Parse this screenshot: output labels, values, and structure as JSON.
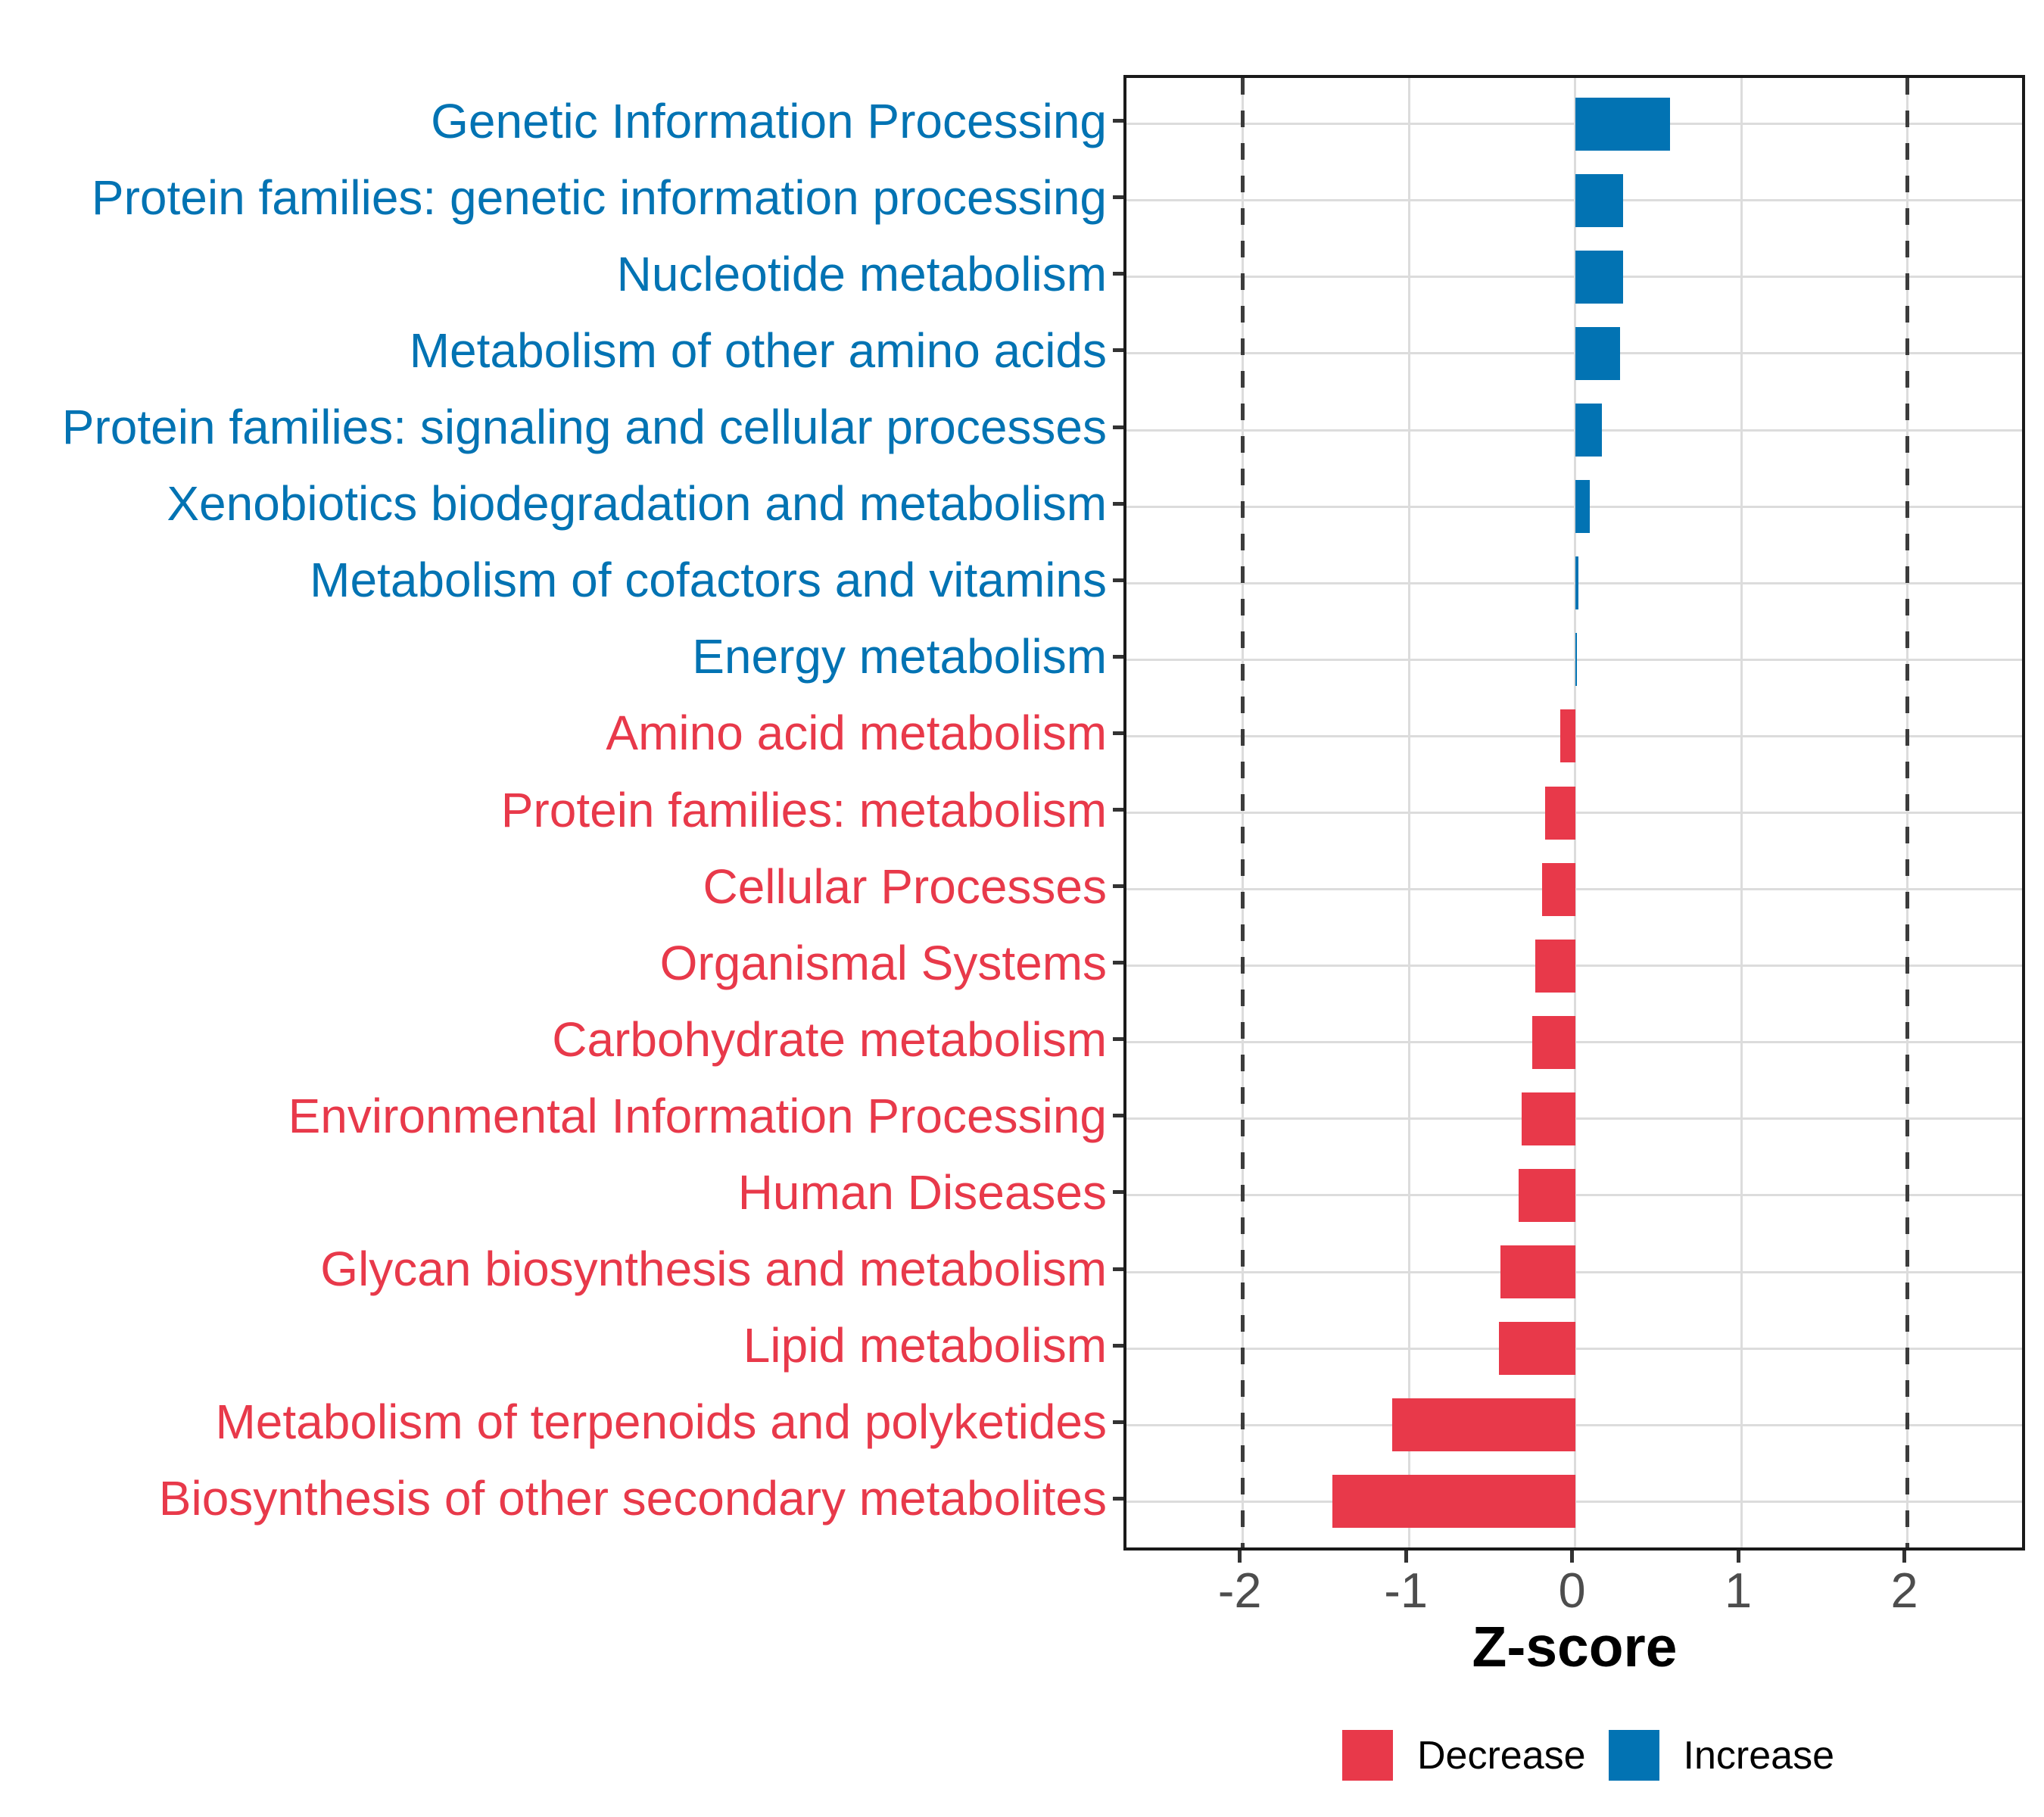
{
  "chart_data": {
    "type": "bar",
    "orientation": "horizontal",
    "title": "",
    "xlabel": "Z-score",
    "ylabel": "",
    "xlim": [
      -2.7,
      2.69
    ],
    "x_ticks": [
      -2,
      -1,
      0,
      1,
      2
    ],
    "x_tick_labels": [
      "-2",
      "-1",
      "0",
      "1",
      "2"
    ],
    "reference_lines": [
      -2,
      2
    ],
    "grid": "major-light-gray",
    "legend_position": "bottom",
    "categories": [
      "Genetic Information Processing",
      "Protein families: genetic information processing",
      "Nucleotide metabolism",
      "Metabolism of other amino acids",
      "Protein families: signaling and cellular processes",
      "Xenobiotics biodegradation and metabolism",
      "Metabolism of cofactors and vitamins",
      "Energy metabolism",
      "Amino acid metabolism",
      "Protein families: metabolism",
      "Cellular Processes",
      "Organismal Systems",
      "Carbohydrate metabolism",
      "Environmental Information Processing",
      "Human Diseases",
      "Glycan biosynthesis and metabolism",
      "Lipid metabolism",
      "Metabolism of terpenoids and polyketides",
      "Biosynthesis of other secondary metabolites"
    ],
    "values": [
      0.57,
      0.29,
      0.29,
      0.27,
      0.16,
      0.09,
      0.02,
      0.01,
      -0.09,
      -0.18,
      -0.2,
      -0.24,
      -0.26,
      -0.32,
      -0.34,
      -0.45,
      -0.46,
      -1.1,
      -1.46
    ],
    "directions": [
      "increase",
      "increase",
      "increase",
      "increase",
      "increase",
      "increase",
      "increase",
      "increase",
      "decrease",
      "decrease",
      "decrease",
      "decrease",
      "decrease",
      "decrease",
      "decrease",
      "decrease",
      "decrease",
      "decrease",
      "decrease"
    ]
  },
  "colors": {
    "increase": "#0273B3",
    "decrease": "#E8394A",
    "gridline": "#DCDCDC",
    "reference_line": "#3C3C3C",
    "tick_label": "#4D4D4D",
    "panel_border": "#1A1A1A"
  },
  "legend": {
    "items": [
      {
        "label": "Decrease",
        "color": "#E8394A"
      },
      {
        "label": "Increase",
        "color": "#0273B3"
      }
    ]
  }
}
